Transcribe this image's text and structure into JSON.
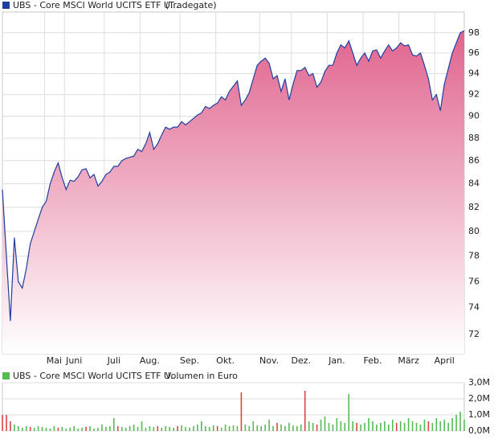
{
  "chart_data": [
    {
      "type": "area-line",
      "title": "UBS - Core MSCI World UCITS ETF U...",
      "subtitle": "(Tradegate)",
      "color": "#1f3f9f",
      "fill_color": "#e0648f",
      "log_scale": true,
      "grid": true,
      "values": [
        83.5,
        78,
        73,
        79.5,
        76,
        75.5,
        77,
        79,
        80,
        81,
        82,
        82.5,
        84,
        85,
        85.8,
        84.5,
        83.5,
        84.3,
        84.2,
        84.6,
        85.2,
        85.3,
        84.5,
        84.8,
        83.8,
        84.2,
        84.8,
        85,
        85.5,
        85.5,
        86,
        86.2,
        86.3,
        86.4,
        87,
        86.8,
        87.5,
        88.5,
        87,
        87.5,
        88.3,
        89,
        88.8,
        89,
        89,
        89.5,
        89.2,
        89.5,
        89.8,
        90.1,
        90.3,
        90.9,
        90.7,
        91,
        91.2,
        91.8,
        91.5,
        92.3,
        92.8,
        93.3,
        91,
        91.5,
        92.2,
        93.5,
        94.8,
        95.2,
        95.5,
        95,
        93.5,
        93.8,
        92.3,
        93.5,
        91.5,
        93,
        94.3,
        94.3,
        94.6,
        93.8,
        94,
        92.7,
        93.2,
        94.2,
        94.8,
        94.8,
        96,
        96.8,
        96.5,
        97.2,
        96,
        94.8,
        95.5,
        96,
        95.2,
        96.2,
        96.3,
        95.5,
        96.2,
        96.8,
        96.2,
        96.5,
        97,
        96.7,
        96.8,
        95.8,
        95.7,
        96,
        94.8,
        93.5,
        91.5,
        92,
        90.5,
        93,
        94.5,
        96,
        97,
        98,
        98.2
      ],
      "xlim": [
        0,
        116
      ],
      "xticks": [
        {
          "value": 13,
          "label": "Mai"
        },
        {
          "value": 18,
          "label": "Juni"
        },
        {
          "value": 28,
          "label": "Juli"
        },
        {
          "value": 37,
          "label": "Aug."
        },
        {
          "value": 47,
          "label": "Sep."
        },
        {
          "value": 56,
          "label": "Okt."
        },
        {
          "value": 67,
          "label": "Nov."
        },
        {
          "value": 75,
          "label": "Dez."
        },
        {
          "value": 84,
          "label": "Jan."
        },
        {
          "value": 93,
          "label": "Feb."
        },
        {
          "value": 102,
          "label": "März"
        },
        {
          "value": 111,
          "label": "April"
        }
      ],
      "ylim": [
        70.6,
        100.1
      ],
      "yticks": [
        72,
        74,
        76,
        78,
        80,
        82,
        84,
        86,
        88,
        90,
        92,
        94,
        96,
        98
      ]
    },
    {
      "type": "bar",
      "title": "UBS - Core MSCI World UCITS ETF U...",
      "subtitle": "Volumen in Euro",
      "color": "#55bb55",
      "grid": true,
      "values": [
        1000000,
        1000000,
        600000,
        400000,
        300000,
        200000,
        300000,
        250000,
        200000,
        300000,
        250000,
        200000,
        150000,
        300000,
        200000,
        250000,
        150000,
        200000,
        300000,
        150000,
        200000,
        250000,
        300000,
        150000,
        200000,
        400000,
        250000,
        300000,
        800000,
        300000,
        250000,
        200000,
        300000,
        400000,
        250000,
        600000,
        200000,
        300000,
        250000,
        300000,
        200000,
        300000,
        250000,
        200000,
        300000,
        350000,
        250000,
        200000,
        300000,
        400000,
        600000,
        300000,
        250000,
        350000,
        300000,
        200000,
        400000,
        300000,
        350000,
        300000,
        2400000,
        400000,
        300000,
        600000,
        350000,
        300000,
        400000,
        700000,
        300000,
        500000,
        400000,
        300000,
        500000,
        350000,
        300000,
        400000,
        2500000,
        600000,
        500000,
        400000,
        700000,
        900000,
        500000,
        400000,
        800000,
        600000,
        500000,
        2300000,
        600000,
        500000,
        400000,
        500000,
        800000,
        600000,
        400000,
        500000,
        600000,
        400000,
        700000,
        500000,
        600000,
        500000,
        800000,
        600000,
        500000,
        400000,
        700000,
        600000,
        500000,
        800000,
        600000,
        700000,
        500000,
        800000,
        1000000,
        1200000,
        700000
      ],
      "colors": [
        "#dd4444",
        "#dd4444",
        "#dd4444",
        "#55bb55",
        "#55bb55",
        "#55bb55",
        "#55bb55",
        "#dd4444",
        "#55bb55",
        "#55bb55",
        "#55bb55",
        "#55bb55",
        "#55bb55",
        "#55bb55",
        "#dd4444",
        "#55bb55",
        "#55bb55",
        "#55bb55",
        "#55bb55",
        "#55bb55",
        "#55bb55",
        "#dd4444",
        "#55bb55",
        "#55bb55",
        "#55bb55",
        "#55bb55",
        "#55bb55",
        "#55bb55",
        "#55bb55",
        "#dd4444",
        "#55bb55",
        "#55bb55",
        "#55bb55",
        "#55bb55",
        "#55bb55",
        "#55bb55",
        "#55bb55",
        "#55bb55",
        "#55bb55",
        "#dd4444",
        "#55bb55",
        "#55bb55",
        "#55bb55",
        "#55bb55",
        "#dd4444",
        "#55bb55",
        "#55bb55",
        "#55bb55",
        "#55bb55",
        "#55bb55",
        "#55bb55",
        "#55bb55",
        "#55bb55",
        "#55bb55",
        "#dd4444",
        "#55bb55",
        "#55bb55",
        "#55bb55",
        "#55bb55",
        "#55bb55",
        "#dd4444",
        "#55bb55",
        "#55bb55",
        "#55bb55",
        "#55bb55",
        "#55bb55",
        "#55bb55",
        "#55bb55",
        "#55bb55",
        "#dd4444",
        "#55bb55",
        "#55bb55",
        "#55bb55",
        "#55bb55",
        "#55bb55",
        "#55bb55",
        "#dd4444",
        "#55bb55",
        "#55bb55",
        "#dd4444",
        "#55bb55",
        "#55bb55",
        "#55bb55",
        "#55bb55",
        "#55bb55",
        "#55bb55",
        "#55bb55",
        "#55bb55",
        "#55bb55",
        "#dd4444",
        "#55bb55",
        "#55bb55",
        "#55bb55",
        "#55bb55",
        "#55bb55",
        "#55bb55",
        "#55bb55",
        "#55bb55",
        "#55bb55",
        "#dd4444",
        "#55bb55",
        "#55bb55",
        "#55bb55",
        "#55bb55",
        "#55bb55",
        "#55bb55",
        "#55bb55",
        "#dd4444",
        "#55bb55",
        "#55bb55",
        "#55bb55",
        "#55bb55",
        "#55bb55",
        "#55bb55",
        "#55bb55",
        "#55bb55",
        "#55bb55"
      ],
      "xlim": [
        0,
        116
      ],
      "ylim": [
        0,
        3000000
      ],
      "yticks": [
        {
          "value": 0,
          "label": "0,0M"
        },
        {
          "value": 1000000,
          "label": "1,0M"
        },
        {
          "value": 2000000,
          "label": "2,0M"
        },
        {
          "value": 3000000,
          "label": "3,0M"
        }
      ]
    }
  ]
}
